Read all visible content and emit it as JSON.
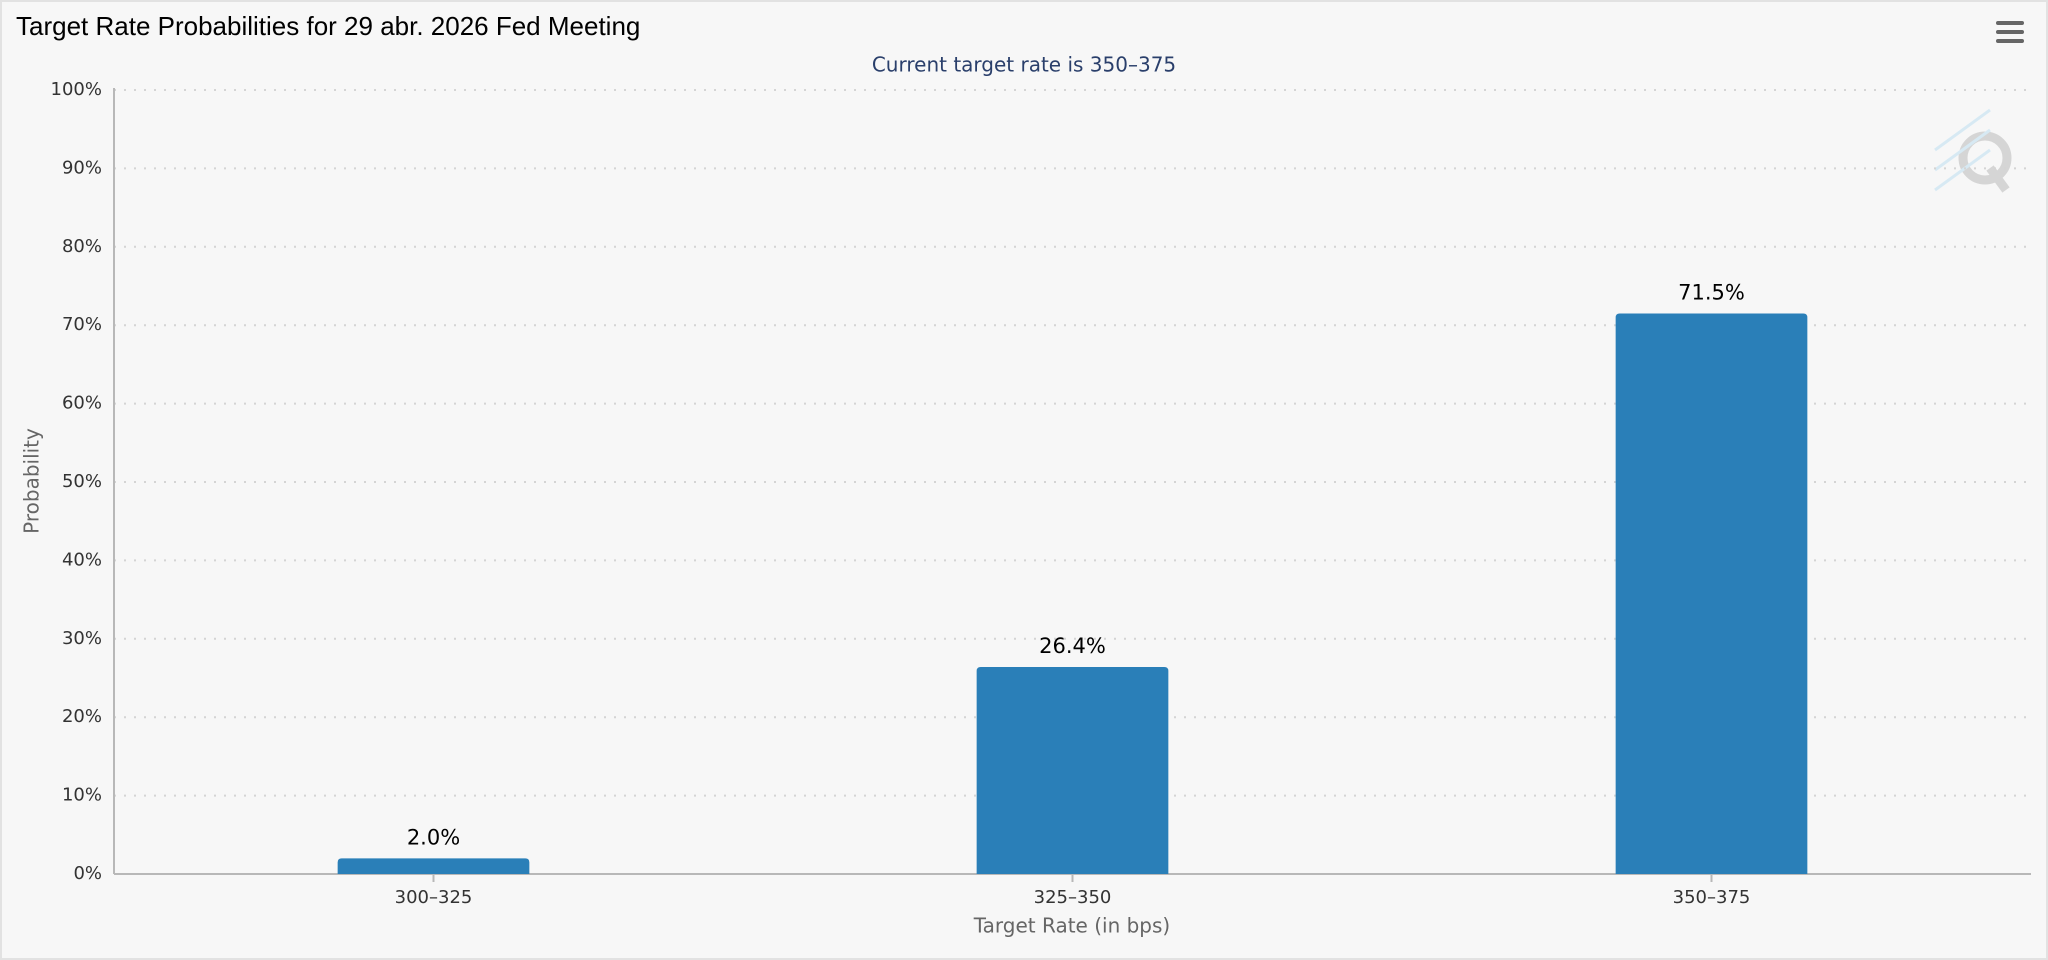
{
  "chart_data": {
    "type": "bar",
    "title": "Target Rate Probabilities for 29 abr. 2026 Fed Meeting",
    "subtitle": "Current target rate is 350–375",
    "x_label": "Target Rate (in bps)",
    "y_label": "Probability",
    "categories": [
      "300–325",
      "325–350",
      "350–375"
    ],
    "values": [
      2.0,
      26.4,
      71.5
    ],
    "value_labels": [
      "2.0%",
      "26.4%",
      "71.5%"
    ],
    "color": "#2a7fb8",
    "ylim": [
      0,
      100
    ],
    "yticks": [
      {
        "value": 0,
        "label": "0%"
      },
      {
        "value": 10,
        "label": "10%"
      },
      {
        "value": 20,
        "label": "20%"
      },
      {
        "value": 30,
        "label": "30%"
      },
      {
        "value": 40,
        "label": "40%"
      },
      {
        "value": 50,
        "label": "50%"
      },
      {
        "value": 60,
        "label": "60%"
      },
      {
        "value": 70,
        "label": "70%"
      },
      {
        "value": 80,
        "label": "80%"
      },
      {
        "value": 90,
        "label": "90%"
      },
      {
        "value": 100,
        "label": "100%"
      }
    ],
    "grid": true
  }
}
